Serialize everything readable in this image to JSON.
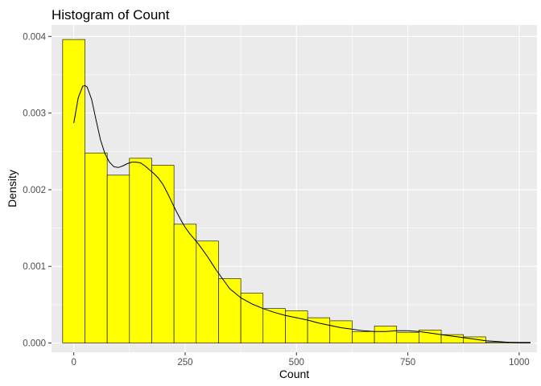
{
  "chart_data": {
    "type": "bar",
    "subtype": "histogram_with_density",
    "title": "Histogram of Count",
    "xlabel": "Count",
    "ylabel": "Density",
    "xlim": [
      -50,
      1040
    ],
    "ylim": [
      -0.00012,
      0.00415
    ],
    "x_ticks": [
      0,
      250,
      500,
      750,
      1000
    ],
    "x_tick_labels": [
      "0",
      "250",
      "500",
      "750",
      "1000"
    ],
    "y_ticks": [
      0,
      0.001,
      0.002,
      0.003,
      0.004
    ],
    "y_tick_labels": [
      "0.000",
      "0.001",
      "0.002",
      "0.003",
      "0.004"
    ],
    "grid": true,
    "bin_width": 50,
    "bins": [
      {
        "x0": -25,
        "x1": 25,
        "density": 0.00396
      },
      {
        "x0": 25,
        "x1": 75,
        "density": 0.00248
      },
      {
        "x0": 75,
        "x1": 125,
        "density": 0.00219
      },
      {
        "x0": 125,
        "x1": 175,
        "density": 0.00241
      },
      {
        "x0": 175,
        "x1": 225,
        "density": 0.00232
      },
      {
        "x0": 225,
        "x1": 275,
        "density": 0.00155
      },
      {
        "x0": 275,
        "x1": 325,
        "density": 0.00133
      },
      {
        "x0": 325,
        "x1": 375,
        "density": 0.00084
      },
      {
        "x0": 375,
        "x1": 425,
        "density": 0.00065
      },
      {
        "x0": 425,
        "x1": 475,
        "density": 0.00045
      },
      {
        "x0": 475,
        "x1": 525,
        "density": 0.00042
      },
      {
        "x0": 525,
        "x1": 575,
        "density": 0.00033
      },
      {
        "x0": 575,
        "x1": 625,
        "density": 0.00029
      },
      {
        "x0": 625,
        "x1": 675,
        "density": 0.00015
      },
      {
        "x0": 675,
        "x1": 725,
        "density": 0.00022
      },
      {
        "x0": 725,
        "x1": 775,
        "density": 0.00014
      },
      {
        "x0": 775,
        "x1": 825,
        "density": 0.00017
      },
      {
        "x0": 825,
        "x1": 875,
        "density": 0.00011
      },
      {
        "x0": 875,
        "x1": 925,
        "density": 8e-05
      },
      {
        "x0": 925,
        "x1": 975,
        "density": 1e-05
      },
      {
        "x0": 975,
        "x1": 1025,
        "density": 1e-05
      }
    ],
    "density_curve": {
      "x": [
        0,
        10,
        20,
        25,
        30,
        40,
        50,
        60,
        70,
        80,
        90,
        100,
        110,
        120,
        130,
        140,
        150,
        160,
        170,
        180,
        190,
        200,
        210,
        220,
        230,
        240,
        250,
        260,
        270,
        280,
        290,
        300,
        310,
        320,
        330,
        340,
        350,
        375,
        400,
        425,
        450,
        475,
        500,
        525,
        550,
        575,
        600,
        625,
        650,
        675,
        700,
        725,
        750,
        775,
        800,
        825,
        850,
        875,
        900,
        925,
        950,
        975,
        1000,
        1025
      ],
      "y": [
        0.00287,
        0.0032,
        0.00335,
        0.00336,
        0.00334,
        0.00318,
        0.00291,
        0.00265,
        0.00247,
        0.00236,
        0.0023,
        0.00229,
        0.00231,
        0.00234,
        0.00236,
        0.00236,
        0.00235,
        0.00231,
        0.00226,
        0.00221,
        0.00215,
        0.00207,
        0.00196,
        0.00184,
        0.00172,
        0.00161,
        0.00151,
        0.00143,
        0.00136,
        0.00129,
        0.00121,
        0.00113,
        0.00104,
        0.00095,
        0.00087,
        0.00079,
        0.00071,
        0.00059,
        0.00051,
        0.00045,
        0.0004,
        0.00036,
        0.00033,
        0.0003,
        0.00026,
        0.00023,
        0.0002,
        0.00018,
        0.00016,
        0.00015,
        0.00015,
        0.00016,
        0.00016,
        0.00015,
        0.00013,
        0.00011,
        9e-05,
        7e-05,
        5e-05,
        3e-05,
        2e-05,
        1e-05,
        5e-06,
        3e-06
      ]
    },
    "colors": {
      "bar_fill": "#ffff00",
      "bar_stroke": "#000000",
      "panel_background": "#ebebeb",
      "grid_major": "#ffffff",
      "curve": "#000000",
      "tick_label": "#4d4d4d"
    }
  }
}
